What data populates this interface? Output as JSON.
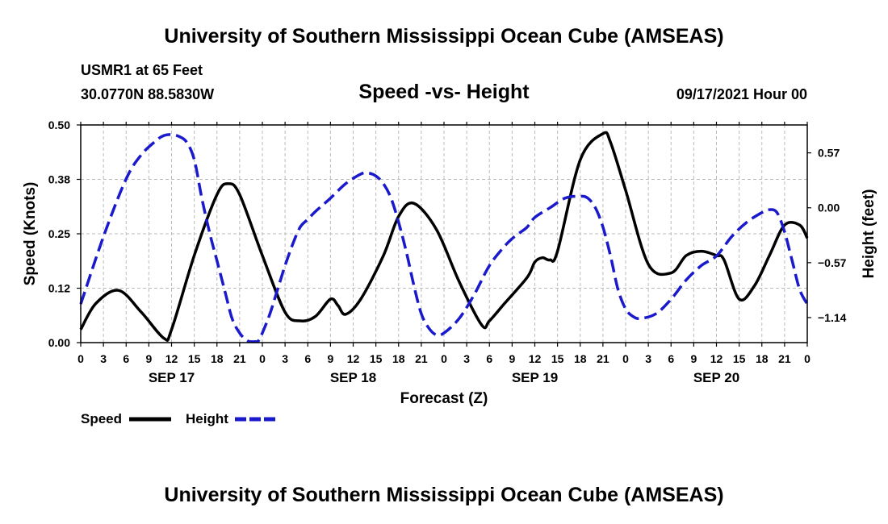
{
  "header": {
    "title": "University of Southern Mississippi Ocean Cube (AMSEAS)",
    "station": "USMR1 at 65 Feet",
    "coords": "30.0770N  88.5830W",
    "chart_title": "Speed -vs- Height",
    "date": "09/17/2021 Hour 00"
  },
  "footer": {
    "title": "University of Southern Mississippi Ocean Cube (AMSEAS)"
  },
  "colors": {
    "speed": "#000000",
    "height": "#1a1acc",
    "grid": "#bbbbbb"
  },
  "chart_data": {
    "type": "line",
    "title": "Speed -vs- Height",
    "xlabel": "Forecast (Z)",
    "ylabel": "Speed (Knots)",
    "y2label": "Height (feet)",
    "x_unit": "hours since 09/17/2021 00Z",
    "xlim": [
      0,
      96
    ],
    "ylim": [
      0,
      0.5
    ],
    "y2lim": [
      -1.4,
      0.86
    ],
    "x_ticks": [
      0,
      3,
      6,
      9,
      12,
      15,
      18,
      21,
      24,
      27,
      30,
      33,
      36,
      39,
      42,
      45,
      48,
      51,
      54,
      57,
      60,
      63,
      66,
      69,
      72,
      75,
      78,
      81,
      84,
      87,
      90,
      93,
      96
    ],
    "x_tick_labels": [
      "0",
      "3",
      "6",
      "9",
      "12",
      "15",
      "18",
      "21",
      "0",
      "3",
      "6",
      "9",
      "12",
      "15",
      "18",
      "21",
      "0",
      "3",
      "6",
      "9",
      "12",
      "15",
      "18",
      "21",
      "0",
      "3",
      "6",
      "9",
      "12",
      "15",
      "18",
      "21",
      "0"
    ],
    "day_labels": [
      {
        "x": 12,
        "label": "SEP 17"
      },
      {
        "x": 36,
        "label": "SEP 18"
      },
      {
        "x": 60,
        "label": "SEP 19"
      },
      {
        "x": 84,
        "label": "SEP 20"
      }
    ],
    "y_ticks": [
      0,
      0.125,
      0.25,
      0.375,
      0.5
    ],
    "y_tick_labels": [
      "0.00",
      "0.12",
      "0.25",
      "0.38",
      "0.50"
    ],
    "y2_ticks": [
      0.57,
      0.0,
      -0.57,
      -1.14
    ],
    "y2_tick_labels": [
      "0.57",
      "0.00",
      "−0.57",
      "−1.14"
    ],
    "grid": true,
    "series": [
      {
        "name": "Speed",
        "axis": "left",
        "style": "solid",
        "legend": "Speed",
        "x": [
          0,
          2,
          5,
          8,
          11,
          12,
          15,
          18,
          19.5,
          21,
          24,
          27,
          29,
          31,
          33,
          34,
          35,
          37,
          40,
          42,
          44,
          47,
          50,
          53,
          54,
          56,
          59,
          60,
          61,
          62,
          63,
          66,
          69,
          70,
          72,
          75,
          78,
          80,
          82,
          84,
          85,
          87,
          89,
          91,
          93,
          95,
          96
        ],
        "values": [
          0.03,
          0.09,
          0.12,
          0.07,
          0.01,
          0.03,
          0.2,
          0.34,
          0.365,
          0.34,
          0.2,
          0.07,
          0.05,
          0.06,
          0.1,
          0.085,
          0.065,
          0.1,
          0.2,
          0.29,
          0.32,
          0.26,
          0.14,
          0.04,
          0.05,
          0.09,
          0.15,
          0.185,
          0.195,
          0.19,
          0.21,
          0.42,
          0.48,
          0.46,
          0.35,
          0.18,
          0.16,
          0.2,
          0.21,
          0.2,
          0.19,
          0.1,
          0.13,
          0.2,
          0.27,
          0.27,
          0.24
        ]
      },
      {
        "name": "Height",
        "axis": "right",
        "style": "dashed",
        "legend": "Height",
        "x": [
          0,
          3,
          6,
          8,
          10,
          11,
          12,
          13,
          14,
          15,
          16,
          17,
          18,
          19,
          20,
          21,
          22,
          23,
          23.5,
          24,
          25,
          26,
          27,
          28,
          29,
          30,
          31,
          33,
          35,
          37,
          38,
          39,
          40,
          41,
          42,
          43,
          44,
          45,
          46,
          47,
          48,
          50,
          52,
          54,
          56,
          57,
          58,
          59,
          60,
          62,
          64,
          66,
          67,
          68,
          69,
          70,
          71,
          72,
          73,
          74,
          76,
          78,
          80,
          82,
          84,
          86,
          88,
          90,
          91,
          92,
          93,
          94,
          95,
          96
        ],
        "values": [
          -1.0,
          -0.3,
          0.3,
          0.55,
          0.7,
          0.75,
          0.76,
          0.74,
          0.68,
          0.5,
          0.1,
          -0.25,
          -0.55,
          -0.85,
          -1.15,
          -1.3,
          -1.38,
          -1.39,
          -1.38,
          -1.3,
          -1.1,
          -0.85,
          -0.6,
          -0.38,
          -0.2,
          -0.12,
          -0.04,
          0.1,
          0.25,
          0.35,
          0.36,
          0.33,
          0.25,
          0.1,
          -0.15,
          -0.45,
          -0.8,
          -1.1,
          -1.25,
          -1.32,
          -1.3,
          -1.15,
          -0.9,
          -0.6,
          -0.4,
          -0.32,
          -0.26,
          -0.2,
          -0.1,
          0.0,
          0.1,
          0.12,
          0.1,
          0.0,
          -0.2,
          -0.5,
          -0.85,
          -1.05,
          -1.13,
          -1.15,
          -1.1,
          -0.95,
          -0.75,
          -0.6,
          -0.5,
          -0.3,
          -0.15,
          -0.05,
          -0.02,
          -0.05,
          -0.25,
          -0.55,
          -0.85,
          -1.0
        ]
      }
    ]
  }
}
